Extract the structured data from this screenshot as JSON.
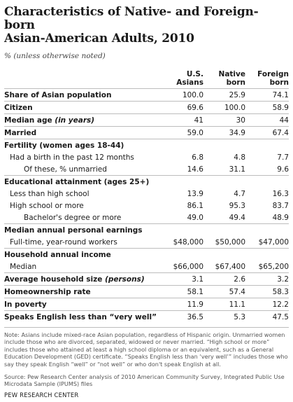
{
  "title_line1": "Characteristics of Native- and Foreign-born",
  "title_line2": "Asian-American Adults, 2010",
  "subtitle": "% (unless otherwise noted)",
  "columns": {
    "us_asians_line1": "U.S.",
    "us_asians_line2": "Asians",
    "native_line1": "Native",
    "native_line2": "born",
    "foreign_line1": "Foreign",
    "foreign_line2": "born"
  },
  "rows": [
    {
      "label": "Share of Asian population",
      "level": 0,
      "values": [
        "100.0",
        "25.9",
        "74.1"
      ]
    },
    {
      "label": "Citizen",
      "level": 0,
      "values": [
        "69.6",
        "100.0",
        "58.9"
      ]
    },
    {
      "label": "Median age",
      "label_italic": "(in years)",
      "level": 0,
      "values": [
        "41",
        "30",
        "44"
      ]
    },
    {
      "label": "Married",
      "level": 0,
      "values": [
        "59.0",
        "34.9",
        "67.4"
      ]
    },
    {
      "label": "Fertility (women ages 18-44)",
      "level": 0,
      "values": [
        "",
        "",
        ""
      ]
    },
    {
      "label": "Had a birth in the past 12 months",
      "level": 1,
      "values": [
        "6.8",
        "4.8",
        "7.7"
      ]
    },
    {
      "label": "Of these, % unmarried",
      "level": 2,
      "values": [
        "14.6",
        "31.1",
        "9.6"
      ]
    },
    {
      "label": "Educational attainment (ages 25+)",
      "level": 0,
      "values": [
        "",
        "",
        ""
      ]
    },
    {
      "label": "Less than high school",
      "level": 1,
      "values": [
        "13.9",
        "4.7",
        "16.3"
      ]
    },
    {
      "label": "High school or more",
      "level": 1,
      "values": [
        "86.1",
        "95.3",
        "83.7"
      ]
    },
    {
      "label": "Bachelor's degree or more",
      "level": 2,
      "values": [
        "49.0",
        "49.4",
        "48.9"
      ]
    },
    {
      "label": "Median annual personal earnings",
      "level": 0,
      "values": [
        "",
        "",
        ""
      ]
    },
    {
      "label": "Full-time, year-round workers",
      "level": 1,
      "values": [
        "$48,000",
        "$50,000",
        "$47,000"
      ]
    },
    {
      "label": "Household annual income",
      "level": 0,
      "values": [
        "",
        "",
        ""
      ]
    },
    {
      "label": "Median",
      "level": 1,
      "values": [
        "$66,000",
        "$67,400",
        "$65,200"
      ]
    },
    {
      "label": "Average household size",
      "label_italic": "(persons)",
      "level": 0,
      "values": [
        "3.1",
        "2.6",
        "3.2"
      ]
    },
    {
      "label": "Homeownership rate",
      "level": 0,
      "values": [
        "58.1",
        "57.4",
        "58.3"
      ]
    },
    {
      "label": "In poverty",
      "level": 0,
      "values": [
        "11.9",
        "11.1",
        "12.2"
      ]
    },
    {
      "label": "Speaks English less than “very well”",
      "level": 0,
      "values": [
        "36.5",
        "5.3",
        "47.5"
      ]
    }
  ],
  "separator_rows": [
    1,
    2,
    3,
    4,
    7,
    11,
    13,
    15,
    16,
    17,
    18
  ],
  "note": "Note: Asians include mixed-race Asian population, regardless of Hispanic origin. Unmarried women include those who are divorced, separated, widowed or never married. “High school or more” includes those who attained at least a high school diploma or an equivalent, such as a General Education Development (GED) certificate. “Speaks English less than ‘very well’” includes those who say they speak English “well” or “not well” or who don't speak English at all.",
  "source": "Source: Pew Research Center analysis of 2010 American Community Survey, Integrated Public Use Microdata Sample (IPUMS) files",
  "organization": "PEW RESEARCH CENTER"
}
